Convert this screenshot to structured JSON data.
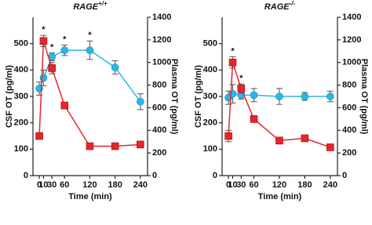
{
  "chart_data": [
    {
      "type": "line",
      "title": "RAGE",
      "title_sup": "+/+",
      "xlabel": "Time (min)",
      "ylabel": "CSF OT (pg/ml)",
      "y2label": "Plasma OT (pg/ml)",
      "x": [
        0,
        10,
        30,
        60,
        120,
        180,
        240
      ],
      "xlim": [
        -15,
        257
      ],
      "xticks": [
        0,
        10,
        30,
        60,
        120,
        180,
        240
      ],
      "ylim": [
        0,
        600
      ],
      "yticks": [
        0,
        100,
        200,
        300,
        400,
        500
      ],
      "y2lim": [
        0,
        1400
      ],
      "y2ticks": [
        0,
        200,
        400,
        600,
        800,
        1000,
        1200,
        1400
      ],
      "series": [
        {
          "color": "#29b6e8",
          "marker": "circle",
          "axis": "y",
          "values": [
            330,
            370,
            450,
            475,
            475,
            410,
            280
          ],
          "errors": [
            25,
            30,
            15,
            20,
            35,
            25,
            30
          ]
        },
        {
          "color": "#e8242a",
          "marker": "square",
          "axis": "y2",
          "values": [
            350,
            1190,
            950,
            620,
            260,
            260,
            275
          ],
          "errors": [
            15,
            50,
            50,
            15,
            15,
            15,
            15
          ]
        }
      ],
      "annotations": [
        {
          "label": "*",
          "x": 10
        },
        {
          "label": "*",
          "x": 30
        },
        {
          "label": "*",
          "x": 60
        },
        {
          "label": "*",
          "x": 120
        }
      ]
    },
    {
      "type": "line",
      "title": "RAGE",
      "title_sup": "-/-",
      "xlabel": "Time (min)",
      "ylabel": "CSF OT (pg/ml)",
      "y2label": "Plasma OT (pg/ml)",
      "x": [
        0,
        10,
        30,
        60,
        120,
        180,
        240
      ],
      "xlim": [
        -15,
        257
      ],
      "xticks": [
        0,
        10,
        30,
        60,
        120,
        180,
        240
      ],
      "ylim": [
        0,
        600
      ],
      "yticks": [
        0,
        100,
        200,
        300,
        400,
        500
      ],
      "y2lim": [
        0,
        1400
      ],
      "y2ticks": [
        0,
        200,
        400,
        600,
        800,
        1000,
        1200,
        1400
      ],
      "series": [
        {
          "color": "#29b6e8",
          "marker": "circle",
          "axis": "y",
          "values": [
            295,
            310,
            305,
            305,
            300,
            300,
            300
          ],
          "errors": [
            25,
            35,
            15,
            25,
            30,
            15,
            20
          ]
        },
        {
          "color": "#e8242a",
          "marker": "square",
          "axis": "y2",
          "values": [
            350,
            1000,
            770,
            500,
            310,
            330,
            250
          ],
          "errors": [
            50,
            50,
            40,
            20,
            30,
            20,
            20
          ]
        }
      ],
      "annotations": [
        {
          "label": "*",
          "x": 10
        },
        {
          "label": "*",
          "x": 30
        }
      ]
    }
  ]
}
